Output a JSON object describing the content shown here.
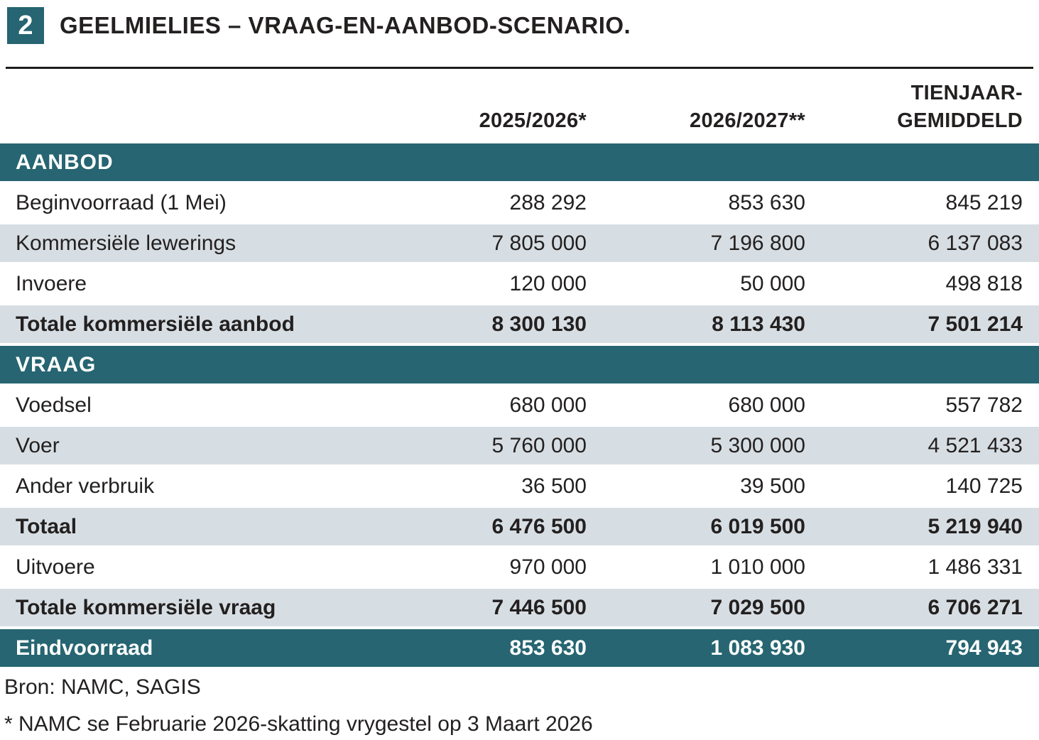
{
  "figure": {
    "number": "2",
    "title": "GEELMIELIES – VRAAG-EN-AANBOD-SCENARIO."
  },
  "table": {
    "column_headers": {
      "col_2025_2026": "2025/2026*",
      "col_2026_2027": "2026/2027**",
      "col_tienjaar_line1": "TIENJAAR-",
      "col_tienjaar_line2": "GEMIDDELD"
    },
    "rows": [
      {
        "label": "AANBOD",
        "type": "section"
      },
      {
        "label": "Beginvoorraad (1 Mei)",
        "values": [
          "288 292",
          "853 630",
          "845 219"
        ]
      },
      {
        "label": "Kommersiële lewerings",
        "values": [
          "7 805 000",
          "7 196 800",
          "6 137 083"
        ]
      },
      {
        "label": "Invoere",
        "values": [
          "120 000",
          "50 000",
          "498 818"
        ]
      },
      {
        "label": "Totale kommersiële aanbod",
        "values": [
          "8 300 130",
          "8 113 430",
          "7 501 214"
        ]
      },
      {
        "label": "VRAAG",
        "type": "section"
      },
      {
        "label": "Voedsel",
        "values": [
          "680 000",
          "680 000",
          "557 782"
        ]
      },
      {
        "label": "Voer",
        "values": [
          "5 760 000",
          "5 300 000",
          "4 521 433"
        ]
      },
      {
        "label": "Ander verbruik",
        "values": [
          "36 500",
          "39 500",
          "140 725"
        ]
      },
      {
        "label": "Totaal",
        "values": [
          "6 476 500",
          "6 019 500",
          "5 219 940"
        ]
      },
      {
        "label": "Uitvoere",
        "values": [
          "970 000",
          "1 010 000",
          "1 486 331"
        ]
      },
      {
        "label": "Totale kommersiële vraag",
        "values": [
          "7 446 500",
          "7 029 500",
          "6 706 271"
        ]
      },
      {
        "label": "Eindvoorraad",
        "values": [
          "853 630",
          "1 083 930",
          "794 943"
        ]
      }
    ]
  },
  "footer": {
    "source": "Bron: NAMC, SAGIS",
    "footnote": "* NAMC se Februarie 2026-skatting vrygestel op 3 Maart 2026"
  },
  "colors": {
    "teal": "#266571",
    "row_shade": "#D7DEE3",
    "text": "#232020",
    "rule": "#1D1D1B"
  },
  "chart_data": {
    "type": "table",
    "title": "GEELMIELIES – VRAAG-EN-AANBOD-SCENARIO.",
    "columns": [
      "",
      "2025/2026*",
      "2026/2027**",
      "TIENJAAR-GEMIDDELD"
    ],
    "sections": [
      {
        "name": "AANBOD",
        "rows": [
          {
            "label": "Beginvoorraad (1 Mei)",
            "values": [
              288292,
              853630,
              845219
            ]
          },
          {
            "label": "Kommersiële lewerings",
            "values": [
              7805000,
              7196800,
              6137083
            ]
          },
          {
            "label": "Invoere",
            "values": [
              120000,
              50000,
              498818
            ]
          },
          {
            "label": "Totale kommersiële aanbod",
            "values": [
              8300130,
              8113430,
              7501214
            ]
          }
        ]
      },
      {
        "name": "VRAAG",
        "rows": [
          {
            "label": "Voedsel",
            "values": [
              680000,
              680000,
              557782
            ]
          },
          {
            "label": "Voer",
            "values": [
              5760000,
              5300000,
              4521433
            ]
          },
          {
            "label": "Ander verbruik",
            "values": [
              36500,
              39500,
              140725
            ]
          },
          {
            "label": "Totaal",
            "values": [
              6476500,
              6019500,
              5219940
            ]
          },
          {
            "label": "Uitvoere",
            "values": [
              970000,
              1010000,
              1486331
            ]
          },
          {
            "label": "Totale kommersiële vraag",
            "values": [
              7446500,
              7029500,
              6706271
            ]
          }
        ]
      },
      {
        "name": "",
        "rows": [
          {
            "label": "Eindvoorraad",
            "values": [
              853630,
              1083930,
              794943
            ]
          }
        ]
      }
    ],
    "source": "Bron: NAMC, SAGIS",
    "footnote": "* NAMC se Februarie 2026-skatting vrygestel op 3 Maart 2026"
  }
}
